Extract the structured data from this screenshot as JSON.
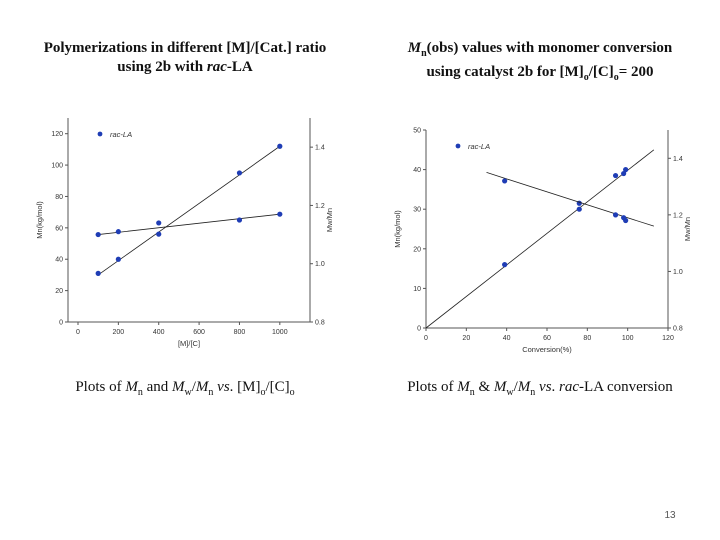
{
  "headings": {
    "left": {
      "line1": "Polymerizations in different [M]/[Cat.] ratio",
      "line2_a": "using 2b with ",
      "line2_b": "rac",
      "line2_c": "-LA"
    },
    "right": {
      "l1_a": "M",
      "l1_b": "n",
      "l1_c": "(obs) values with monomer conversion",
      "l2_a": "using catalyst 2b for [M]",
      "l2_b": "o",
      "l2_c": "/[C]",
      "l2_d": "o",
      "l2_e": "= 200"
    }
  },
  "captions": {
    "left": {
      "a": "Plots of ",
      "b": "M",
      "c": "n",
      "d": " and ",
      "e": "M",
      "f": "w",
      "g": "/",
      "h": "M",
      "i": "n",
      "j": " vs",
      "k": ". [M]",
      "l": "o",
      "m": "/[C]",
      "n": "o"
    },
    "right": {
      "a": "Plots of  ",
      "b": "M",
      "c": "n",
      "d": " & ",
      "e": "M",
      "f": "w",
      "g": "/",
      "h": "M",
      "i": "n",
      "j": " vs",
      "k": ". ",
      "l": "rac",
      "m": "-LA conversion"
    }
  },
  "page_number": "13",
  "colors": {
    "marker": "#1f3db5",
    "line": "#222222",
    "axis": "#555555"
  },
  "chart_data": [
    {
      "type": "scatter",
      "legend": "rac-LA",
      "xlabel": "[M]/[C]",
      "ylabel": "Mn(kg/mol)",
      "y2label": "Mw/Mn",
      "xlim": [
        0,
        1100
      ],
      "ylim": [
        0,
        130
      ],
      "y2lim": [
        0.8,
        1.5
      ],
      "xticks": [
        0,
        200,
        400,
        600,
        800,
        1000
      ],
      "xtick_labels": [
        "0",
        "200",
        "400",
        "600",
        "800",
        "1000"
      ],
      "yticks": [
        0,
        20,
        40,
        60,
        80,
        100,
        120
      ],
      "ytick_labels": [
        "0",
        "20",
        "40",
        "60",
        "80",
        "100",
        "120"
      ],
      "y2ticks": [
        0.8,
        1.0,
        1.2,
        1.4
      ],
      "y2tick_labels": [
        "0.8",
        "1.0",
        "1.2",
        "1.4"
      ],
      "series": [
        {
          "name": "Mn",
          "axis": "left",
          "x": [
            100,
            200,
            400,
            800,
            1000
          ],
          "y": [
            31,
            40,
            56,
            95,
            112
          ],
          "fit": [
            [
              100,
              30
            ],
            [
              1000,
              112
            ]
          ]
        },
        {
          "name": "Mw/Mn",
          "axis": "right",
          "x": [
            100,
            200,
            400,
            800,
            1000
          ],
          "y": [
            1.1,
            1.11,
            1.14,
            1.15,
            1.17
          ],
          "fit": [
            [
              100,
              1.1
            ],
            [
              1000,
              1.17
            ]
          ]
        }
      ]
    },
    {
      "type": "scatter",
      "legend": "rac-LA",
      "xlabel": "Conversion(%)",
      "ylabel": "Mn(kg/mol)",
      "y2label": "Mw/Mn",
      "xlim": [
        0,
        120
      ],
      "ylim": [
        0,
        50
      ],
      "y2lim": [
        0.8,
        1.5
      ],
      "xticks": [
        0,
        20,
        40,
        60,
        80,
        100,
        120
      ],
      "xtick_labels": [
        "0",
        "20",
        "40",
        "60",
        "80",
        "100",
        "120"
      ],
      "yticks": [
        0,
        10,
        20,
        30,
        40,
        50
      ],
      "ytick_labels": [
        "0",
        "10",
        "20",
        "30",
        "40",
        "50"
      ],
      "y2ticks": [
        0.8,
        1.0,
        1.2,
        1.4
      ],
      "y2tick_labels": [
        "0.8",
        "1.0",
        "1.2",
        "1.4"
      ],
      "series": [
        {
          "name": "Mn",
          "axis": "left",
          "x": [
            39,
            76,
            94,
            98,
            99
          ],
          "y": [
            16,
            31.5,
            38.5,
            39,
            40
          ],
          "fit": [
            [
              0,
              0
            ],
            [
              113,
              45
            ]
          ]
        },
        {
          "name": "Mw/Mn",
          "axis": "right",
          "x": [
            39,
            76,
            94,
            98,
            99
          ],
          "y": [
            1.32,
            1.22,
            1.2,
            1.19,
            1.18
          ],
          "fit": [
            [
              30,
              1.35
            ],
            [
              113,
              1.16
            ]
          ]
        }
      ]
    }
  ]
}
